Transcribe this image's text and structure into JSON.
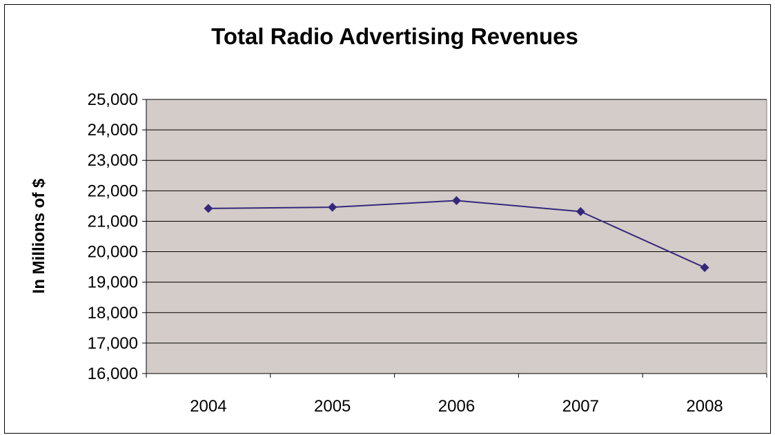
{
  "chart_data": {
    "type": "line",
    "title": "Total Radio Advertising Revenues",
    "xlabel": "",
    "ylabel": "In Millions of $",
    "categories": [
      "2004",
      "2005",
      "2006",
      "2007",
      "2008"
    ],
    "series": [
      {
        "values": [
          21420,
          21460,
          21680,
          21320,
          19480
        ]
      }
    ],
    "ylim": [
      16000,
      25000
    ],
    "y_ticks": [
      16000,
      17000,
      18000,
      19000,
      20000,
      21000,
      22000,
      23000,
      24000,
      25000
    ],
    "y_tick_labels": [
      "16,000",
      "17,000",
      "18,000",
      "19,000",
      "20,000",
      "21,000",
      "22,000",
      "23,000",
      "24,000",
      "25,000"
    ],
    "grid": true,
    "legend": "none",
    "colors": {
      "plot_background": "#d4ccc8",
      "line": "#35287a",
      "marker": "#35287a",
      "gridline": "#000000"
    },
    "marker": "diamond"
  }
}
